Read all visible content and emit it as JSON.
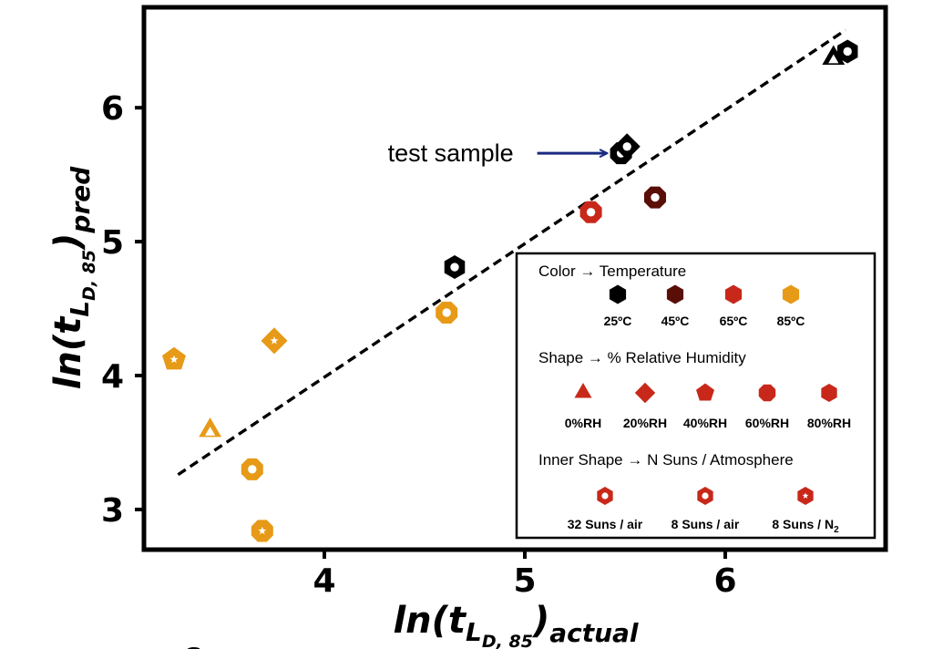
{
  "chart_data": {
    "type": "scatter",
    "xlim": [
      3.1,
      6.8
    ],
    "ylim": [
      2.7,
      6.75
    ],
    "xticks": [
      4,
      5,
      6
    ],
    "yticks": [
      3,
      4,
      5,
      6
    ],
    "xlabel": {
      "base": "ln(t",
      "sub": "L",
      "subsub": "D, 85",
      "close": ")",
      "suffix": "actual"
    },
    "ylabel": {
      "base": "ln(t",
      "sub": "L",
      "subsub": "D, 85",
      "close": ")",
      "suffix": "pred"
    },
    "fit_line": {
      "x": [
        3.27,
        6.6
      ],
      "y": [
        3.26,
        6.58
      ]
    },
    "colors": {
      "25C": "#000000",
      "45C": "#5a0e08",
      "65C": "#c8281a",
      "85C": "#e79a17",
      "annotation_arrow": "#1a2a80"
    },
    "points": [
      {
        "x": 3.25,
        "y": 4.12,
        "temp": "85C",
        "shape": "pentagon",
        "inner": "star"
      },
      {
        "x": 3.43,
        "y": 3.59,
        "temp": "85C",
        "shape": "triangle",
        "inner": "triangle"
      },
      {
        "x": 3.64,
        "y": 3.3,
        "temp": "85C",
        "shape": "octagon",
        "inner": "circle"
      },
      {
        "x": 3.69,
        "y": 2.84,
        "temp": "85C",
        "shape": "octagon",
        "inner": "star"
      },
      {
        "x": 3.75,
        "y": 4.26,
        "temp": "85C",
        "shape": "diamond",
        "inner": "star"
      },
      {
        "x": 4.61,
        "y": 4.47,
        "temp": "85C",
        "shape": "octagon",
        "inner": "circle"
      },
      {
        "x": 4.65,
        "y": 4.81,
        "temp": "25C",
        "shape": "hexagon",
        "inner": "circle"
      },
      {
        "x": 5.33,
        "y": 5.22,
        "temp": "65C",
        "shape": "octagon",
        "inner": "circle"
      },
      {
        "x": 5.48,
        "y": 5.66,
        "temp": "25C",
        "shape": "octagon",
        "inner": "circle"
      },
      {
        "x": 5.51,
        "y": 5.71,
        "temp": "25C",
        "shape": "diamond",
        "inner": "circle"
      },
      {
        "x": 5.65,
        "y": 5.33,
        "temp": "45C",
        "shape": "octagon",
        "inner": "circle"
      },
      {
        "x": 6.54,
        "y": 6.37,
        "temp": "25C",
        "shape": "triangle",
        "inner": "triangle"
      },
      {
        "x": 6.61,
        "y": 6.42,
        "temp": "25C",
        "shape": "hexagon",
        "inner": "circle"
      }
    ],
    "annotation": {
      "text": "test sample",
      "x": 5.48,
      "y": 5.66
    }
  },
  "legend": {
    "color_title": "Color → Temperature",
    "color_items": [
      "25ºC",
      "45ºC",
      "65ºC",
      "85ºC"
    ],
    "shape_title": "Shape → % Relative Humidity",
    "shape_items": [
      "0%RH",
      "20%RH",
      "40%RH",
      "60%RH",
      "80%RH"
    ],
    "inner_title": "Inner Shape → N Suns / Atmosphere",
    "inner_items": [
      "32 Suns / air",
      "8 Suns / air",
      "8 Suns / N"
    ],
    "inner_subscript": "2"
  },
  "panel_letter": "c"
}
